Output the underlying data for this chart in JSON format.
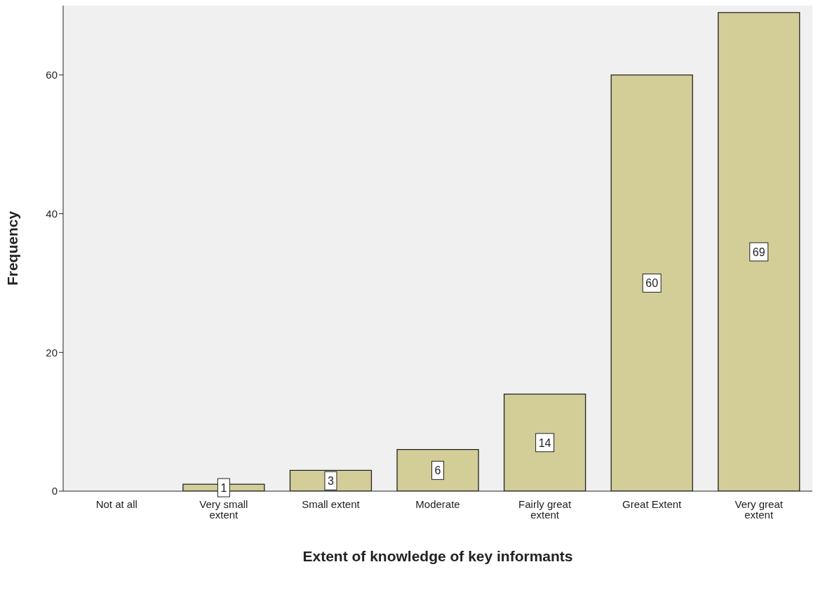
{
  "chart_data": {
    "type": "bar",
    "xlabel": "Extent of knowledge of key informants",
    "ylabel": "Frequency",
    "categories": [
      "Not at all",
      "Very small extent",
      "Small extent",
      "Moderate",
      "Fairly great extent",
      "Great Extent",
      "Very great extent"
    ],
    "values": [
      0,
      1,
      3,
      6,
      14,
      60,
      69
    ],
    "value_labels": [
      null,
      "1",
      "3",
      "6",
      "14",
      "60",
      "69"
    ],
    "color": "#d3ce98",
    "ylim": [
      0,
      70
    ],
    "yticks": [
      0,
      20,
      40,
      60
    ],
    "grid": false,
    "legend": false
  }
}
